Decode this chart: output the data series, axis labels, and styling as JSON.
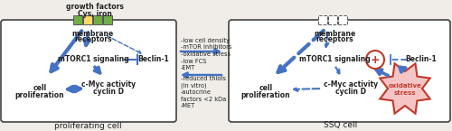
{
  "bg_color": "#f0ede8",
  "white": "#ffffff",
  "blue": "#4472c4",
  "red": "#c0392b",
  "green": "#70ad47",
  "yellow": "#ffd966",
  "text_color": "#222222",
  "title_left": "proliferating cell",
  "title_right": "SSQ cell",
  "fs": 5.5,
  "fs_mid": 4.8,
  "fs_title": 6.5,
  "mid_top": [
    "-low cell density",
    "-mTOR inhibitors",
    "-oxidative stress",
    "-low FCS",
    "-EMT"
  ],
  "mid_bot": [
    "-reduced thiols",
    "(in vitro)",
    "-autocrine",
    "factors <2 kDa",
    "-MET"
  ]
}
